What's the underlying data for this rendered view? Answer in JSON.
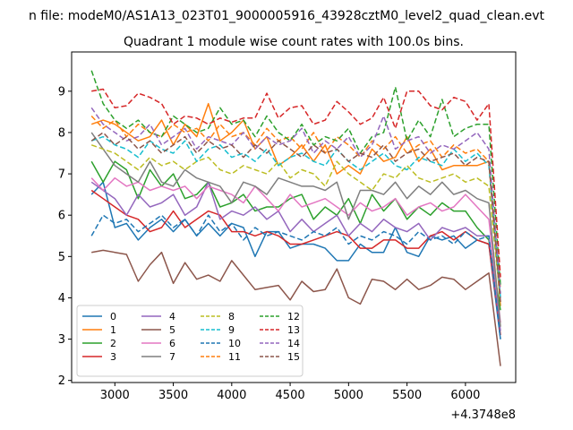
{
  "figure": {
    "suptitle": "n file: modeM0/AS1A13_023T01_9000005916_43928cztM0_level2_quad_clean.evt",
    "x_offset_text": "+4.3748e8"
  },
  "chart_data": {
    "type": "line",
    "title": "Quadrant 1 module wise count rates with 100.0s bins.",
    "xlabel": "",
    "ylabel": "",
    "xlim": [
      2630,
      6430
    ],
    "ylim": [
      1.95,
      9.95
    ],
    "x_ticks": [
      3000,
      3500,
      4000,
      4500,
      5000,
      5500,
      6000
    ],
    "y_ticks": [
      2,
      3,
      4,
      5,
      6,
      7,
      8,
      9
    ],
    "grid": false,
    "legend": {
      "position": "lower-left",
      "columns": 4
    },
    "x": [
      2800,
      2900,
      3000,
      3100,
      3200,
      3300,
      3400,
      3500,
      3600,
      3700,
      3800,
      3900,
      4000,
      4100,
      4200,
      4300,
      4400,
      4500,
      4600,
      4700,
      4800,
      4900,
      5000,
      5100,
      5200,
      5300,
      5400,
      5500,
      5600,
      5700,
      5800,
      5900,
      6000,
      6100,
      6200,
      6300
    ],
    "series": [
      {
        "name": "0",
        "color": "#1f77b4",
        "dash": "solid",
        "values": [
          6.5,
          6.8,
          5.7,
          5.8,
          5.4,
          5.7,
          5.9,
          5.6,
          5.9,
          5.5,
          5.8,
          5.5,
          5.8,
          5.7,
          5.0,
          5.6,
          5.6,
          5.2,
          5.3,
          5.3,
          5.2,
          4.9,
          4.9,
          5.3,
          5.1,
          5.1,
          5.7,
          5.1,
          5.0,
          5.5,
          5.4,
          5.5,
          5.2,
          5.4,
          5.3,
          3.0
        ]
      },
      {
        "name": "1",
        "color": "#ff7f0e",
        "dash": "solid",
        "values": [
          8.2,
          8.3,
          8.2,
          8.0,
          7.8,
          7.9,
          8.3,
          7.7,
          8.2,
          7.9,
          8.7,
          7.8,
          8.0,
          8.3,
          7.6,
          7.9,
          7.2,
          7.4,
          7.7,
          7.3,
          7.7,
          7.0,
          7.2,
          7.0,
          7.6,
          7.3,
          7.4,
          7.9,
          7.3,
          7.6,
          7.1,
          7.2,
          7.2,
          7.2,
          7.3,
          3.8
        ]
      },
      {
        "name": "2",
        "color": "#2ca02c",
        "dash": "solid",
        "values": [
          7.3,
          6.8,
          7.3,
          7.1,
          6.4,
          7.1,
          6.7,
          7.0,
          6.4,
          6.5,
          6.8,
          6.2,
          6.3,
          6.5,
          6.1,
          6.2,
          6.2,
          6.4,
          6.5,
          5.9,
          6.2,
          6.0,
          6.4,
          5.8,
          6.5,
          6.1,
          6.4,
          5.9,
          6.2,
          6.0,
          6.3,
          6.1,
          6.1,
          5.7,
          5.4,
          3.7
        ]
      },
      {
        "name": "3",
        "color": "#d62728",
        "dash": "solid",
        "values": [
          6.6,
          6.4,
          6.2,
          6.0,
          5.9,
          5.6,
          5.7,
          6.1,
          5.7,
          5.9,
          6.1,
          6.0,
          5.6,
          5.6,
          5.5,
          5.6,
          5.5,
          5.3,
          5.3,
          5.4,
          5.5,
          5.6,
          5.5,
          5.2,
          5.2,
          5.4,
          5.4,
          5.2,
          5.2,
          5.5,
          5.6,
          5.4,
          5.6,
          5.4,
          5.3,
          3.1
        ]
      },
      {
        "name": "4",
        "color": "#9467bd",
        "dash": "solid",
        "values": [
          6.8,
          6.6,
          6.4,
          6.0,
          6.5,
          6.2,
          6.3,
          6.5,
          6.0,
          6.2,
          6.8,
          5.9,
          6.1,
          6.0,
          6.2,
          5.9,
          6.1,
          5.6,
          5.9,
          5.6,
          5.8,
          6.0,
          5.5,
          5.8,
          5.6,
          5.9,
          5.7,
          5.6,
          5.8,
          5.4,
          5.7,
          5.6,
          5.7,
          5.5,
          5.5,
          3.2
        ]
      },
      {
        "name": "5",
        "color": "#8c564b",
        "dash": "solid",
        "values": [
          5.1,
          5.15,
          5.1,
          5.05,
          4.4,
          4.8,
          5.1,
          4.35,
          4.85,
          4.45,
          4.55,
          4.4,
          4.9,
          4.55,
          4.2,
          4.25,
          4.3,
          3.95,
          4.4,
          4.15,
          4.2,
          4.7,
          4.0,
          3.85,
          4.45,
          4.4,
          4.2,
          4.45,
          4.2,
          4.3,
          4.5,
          4.45,
          4.2,
          4.4,
          4.6,
          2.35
        ]
      },
      {
        "name": "6",
        "color": "#e377c2",
        "dash": "solid",
        "values": [
          6.9,
          6.6,
          6.9,
          6.7,
          6.8,
          6.6,
          6.7,
          6.6,
          6.7,
          6.4,
          6.7,
          6.6,
          6.5,
          6.3,
          6.7,
          6.4,
          6.1,
          6.5,
          6.2,
          6.3,
          6.4,
          6.2,
          6.0,
          6.3,
          6.1,
          6.2,
          6.4,
          6.0,
          6.2,
          6.3,
          6.1,
          6.2,
          6.5,
          6.2,
          5.9,
          3.4
        ]
      },
      {
        "name": "7",
        "color": "#7f7f7f",
        "dash": "solid",
        "values": [
          8.0,
          7.6,
          7.2,
          7.0,
          6.8,
          7.3,
          6.8,
          6.7,
          7.1,
          6.9,
          6.8,
          6.7,
          6.3,
          6.8,
          6.7,
          6.5,
          6.9,
          6.8,
          6.7,
          6.7,
          6.6,
          6.8,
          5.9,
          6.6,
          6.6,
          6.5,
          6.8,
          6.4,
          6.7,
          6.5,
          6.8,
          6.5,
          6.6,
          6.4,
          6.3,
          3.3
        ]
      },
      {
        "name": "8",
        "color": "#bcbd22",
        "dash": "dashed",
        "values": [
          7.7,
          7.6,
          7.5,
          7.3,
          7.1,
          7.4,
          7.2,
          7.3,
          7.1,
          7.3,
          7.4,
          7.1,
          7.0,
          7.2,
          7.1,
          7.0,
          7.3,
          6.9,
          7.1,
          7.0,
          6.7,
          7.3,
          7.0,
          6.8,
          6.6,
          7.0,
          6.9,
          7.2,
          6.9,
          6.8,
          6.9,
          7.0,
          6.8,
          6.9,
          6.7,
          3.9
        ]
      },
      {
        "name": "9",
        "color": "#17becf",
        "dash": "dashed",
        "values": [
          7.8,
          7.9,
          7.7,
          7.6,
          7.4,
          7.8,
          7.6,
          7.5,
          7.8,
          7.3,
          7.6,
          7.7,
          7.4,
          7.5,
          7.3,
          7.6,
          7.2,
          7.4,
          7.5,
          7.3,
          7.2,
          7.6,
          7.3,
          7.1,
          7.3,
          7.5,
          7.2,
          7.1,
          7.4,
          7.3,
          7.2,
          7.6,
          7.3,
          7.5,
          7.2,
          4.0
        ]
      },
      {
        "name": "10",
        "color": "#1f77b4",
        "dash": "dashed",
        "values": [
          5.5,
          6.0,
          5.8,
          5.9,
          5.6,
          5.8,
          6.0,
          5.7,
          5.9,
          5.5,
          6.0,
          5.6,
          5.8,
          5.4,
          5.7,
          5.5,
          5.6,
          5.5,
          5.4,
          5.6,
          5.5,
          5.7,
          5.3,
          5.5,
          5.4,
          5.6,
          5.5,
          5.3,
          5.6,
          5.4,
          5.5,
          5.3,
          5.6,
          5.4,
          5.5,
          3.0
        ]
      },
      {
        "name": "11",
        "color": "#ff7f0e",
        "dash": "dashed",
        "values": [
          8.4,
          8.1,
          8.3,
          7.9,
          8.2,
          8.0,
          7.9,
          8.2,
          8.0,
          8.1,
          7.8,
          8.2,
          7.9,
          8.0,
          7.7,
          8.1,
          7.8,
          7.9,
          7.6,
          8.0,
          7.5,
          7.9,
          7.7,
          7.4,
          7.8,
          7.6,
          7.9,
          7.5,
          7.7,
          7.8,
          7.4,
          7.7,
          7.5,
          7.6,
          7.3,
          4.2
        ]
      },
      {
        "name": "12",
        "color": "#2ca02c",
        "dash": "dashed",
        "values": [
          9.5,
          8.7,
          8.3,
          8.1,
          8.3,
          8.0,
          7.9,
          8.4,
          8.2,
          8.0,
          8.1,
          8.6,
          8.2,
          8.3,
          7.9,
          8.4,
          8.0,
          7.8,
          8.2,
          7.7,
          7.9,
          7.8,
          8.1,
          7.5,
          7.9,
          8.0,
          9.1,
          7.8,
          8.3,
          7.9,
          8.8,
          7.9,
          8.1,
          8.2,
          8.2,
          4.3
        ]
      },
      {
        "name": "13",
        "color": "#d62728",
        "dash": "dashed",
        "values": [
          9.0,
          9.05,
          8.6,
          8.65,
          8.95,
          8.85,
          8.7,
          8.2,
          8.4,
          8.35,
          8.2,
          8.35,
          8.25,
          8.35,
          8.35,
          8.95,
          8.35,
          8.6,
          8.65,
          8.2,
          8.3,
          8.75,
          8.5,
          8.2,
          8.35,
          8.85,
          8.1,
          9.0,
          9.0,
          8.65,
          8.55,
          8.85,
          8.75,
          8.3,
          8.7,
          4.5
        ]
      },
      {
        "name": "14",
        "color": "#9467bd",
        "dash": "dashed",
        "values": [
          8.6,
          8.2,
          8.0,
          7.8,
          7.9,
          8.2,
          7.7,
          7.9,
          8.1,
          7.6,
          7.9,
          7.8,
          7.7,
          8.0,
          7.6,
          7.9,
          7.7,
          7.8,
          8.1,
          7.5,
          7.8,
          7.6,
          7.9,
          7.4,
          7.7,
          8.4,
          7.6,
          7.8,
          7.9,
          7.5,
          7.7,
          7.6,
          7.8,
          8.0,
          7.6,
          4.1
        ]
      },
      {
        "name": "15",
        "color": "#8c564b",
        "dash": "dashed",
        "values": [
          7.8,
          8.0,
          7.7,
          7.9,
          7.6,
          7.8,
          7.5,
          7.7,
          7.9,
          7.5,
          7.8,
          7.6,
          7.7,
          7.4,
          7.7,
          7.5,
          7.8,
          7.6,
          7.4,
          7.7,
          7.5,
          7.6,
          7.3,
          7.5,
          7.4,
          7.7,
          7.3,
          7.5,
          7.6,
          7.3,
          7.4,
          7.5,
          7.2,
          7.4,
          7.3,
          3.9
        ]
      }
    ]
  }
}
